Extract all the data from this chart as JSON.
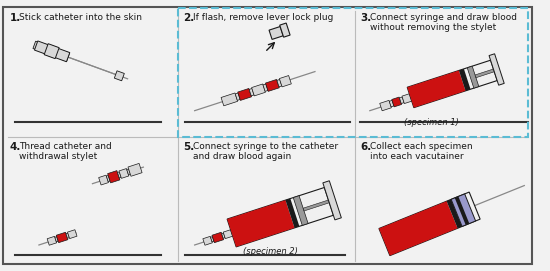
{
  "bg_color": "#f2f2f2",
  "border_color": "#555555",
  "dashed_box_color": "#5bbcd4",
  "red_color": "#cc1111",
  "black_color": "#1a1a1a",
  "gray_color": "#999999",
  "light_gray": "#d8d8d8",
  "needle_color": "#888888",
  "syringe_body": "#f0f0f0",
  "lavender_color": "#9999cc",
  "divider_color": "#bbbbbb",
  "text_color": "#1a1a1a",
  "step1_label": "1.",
  "step1_text": "Stick catheter into the skin",
  "step2_label": "2.",
  "step2_text": "If flash, remove lever lock plug",
  "step3_label": "3.",
  "step3_text1": "Connect syringe and draw blood",
  "step3_text2": "without removing the stylet",
  "step3_note": "(specimen 1)",
  "step4_label": "4.",
  "step4_text1": "Thread catheter and",
  "step4_text2": "withdrawal stylet",
  "step5_label": "5.",
  "step5_text1": "Connect syringe to the catheter",
  "step5_text2": "and draw blood again",
  "step5_note": "(specimen 2)",
  "step6_label": "6.",
  "step6_text1": "Collect each specimen",
  "step6_text2": "into each vacutainer"
}
